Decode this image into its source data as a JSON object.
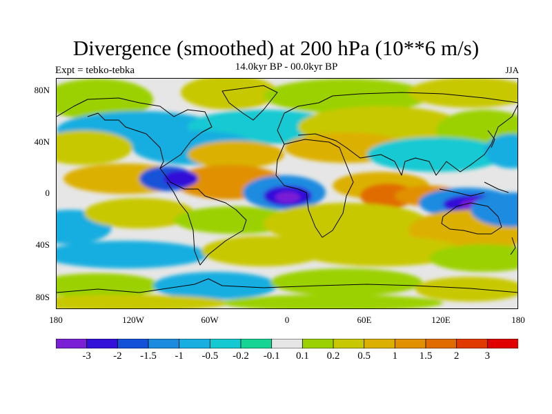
{
  "title": "Divergence (smoothed) at 200 hPa (10**6 m/s)",
  "subtitle": "14.0kyr BP - 00.0kyr BP",
  "left_label": "Expt = tebko-tebka",
  "right_label": "JJA",
  "map": {
    "projection": "cylindrical equidistant",
    "lon_range": [
      -180,
      180
    ],
    "lat_range": [
      -90,
      90
    ],
    "y_ticks": [
      "80N",
      "40N",
      "0",
      "40S",
      "80S"
    ],
    "x_ticks": [
      "180",
      "120W",
      "60W",
      "0",
      "60E",
      "120E",
      "180"
    ]
  },
  "colorbar": {
    "labels": [
      "-3",
      "-2",
      "-1.5",
      "-1",
      "-0.5",
      "-0.2",
      "-0.1",
      "0.1",
      "0.2",
      "0.5",
      "1",
      "1.5",
      "2",
      "3"
    ],
    "colors": [
      "#7a1fd6",
      "#3311d8",
      "#1352d8",
      "#1b8be0",
      "#18aee0",
      "#15c9d2",
      "#16d494",
      "#e6e6e6",
      "#9bd100",
      "#c8c800",
      "#dcb000",
      "#e09000",
      "#e06c00",
      "#e03a00",
      "#e00000"
    ]
  }
}
